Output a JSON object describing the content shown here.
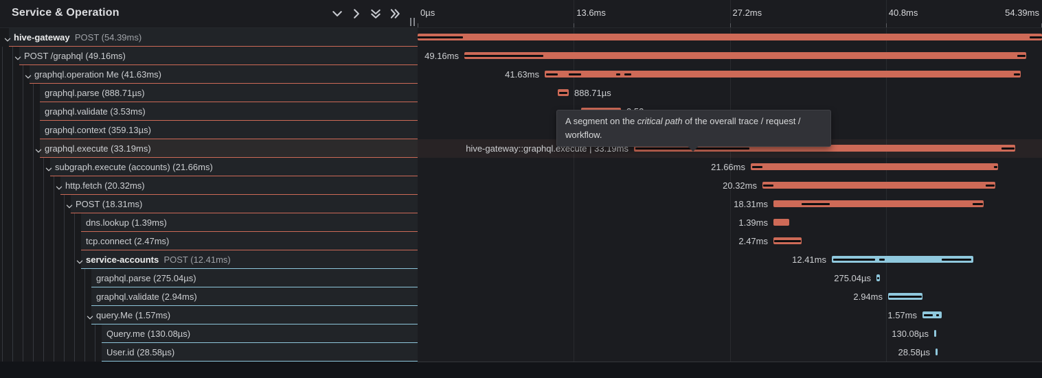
{
  "header": {
    "title": "Service & Operation",
    "controls": [
      "chevron-down",
      "chevron-right",
      "chevrons-down",
      "chevrons-right"
    ],
    "ticks": [
      {
        "label": "0µs",
        "pct": 0
      },
      {
        "label": "13.6ms",
        "pct": 25
      },
      {
        "label": "27.2ms",
        "pct": 50
      },
      {
        "label": "40.8ms",
        "pct": 75
      },
      {
        "label": "54.39ms",
        "pct": 100
      }
    ]
  },
  "colors": {
    "salmon": "#ce6a57",
    "blue": "#8fc8dd",
    "critical": "#0e0e10"
  },
  "tooltip": {
    "prefix": "A segment on the ",
    "em": "critical path",
    "middle": " of the overall trace / request /",
    "line2": "workflow."
  },
  "rows": [
    {
      "depth": 0,
      "chevron": true,
      "strong": "hive-gateway",
      "text": "POST (54.39ms)",
      "color": "salmon",
      "bar": [
        0,
        909
      ],
      "crit": [
        [
          0,
          66
        ],
        [
          891,
          909
        ]
      ],
      "tl": "",
      "side": "left"
    },
    {
      "depth": 1,
      "chevron": true,
      "strong": "",
      "text": "POST /graphql (49.16ms)",
      "color": "salmon",
      "bar": [
        68,
        886
      ],
      "crit": [
        [
          68,
          183
        ],
        [
          873,
          885
        ]
      ],
      "tl": "49.16ms",
      "side": "left"
    },
    {
      "depth": 2,
      "chevron": true,
      "strong": "",
      "text": "graphql.operation Me (41.63ms)",
      "color": "salmon",
      "bar": [
        185,
        878
      ],
      "crit": [
        [
          187,
          204
        ],
        [
          220,
          238
        ],
        [
          289,
          295
        ],
        [
          301,
          311
        ],
        [
          868,
          877
        ]
      ],
      "tl": "41.63ms",
      "side": "left"
    },
    {
      "depth": 3,
      "chevron": false,
      "strong": "",
      "text": "graphql.parse (888.71µs)",
      "color": "salmon",
      "bar": [
        204,
        220
      ],
      "crit": [
        [
          206,
          218
        ]
      ],
      "tl": "888.71µs",
      "side": "right"
    },
    {
      "depth": 3,
      "chevron": false,
      "strong": "",
      "text": "graphql.validate (3.53ms)",
      "color": "salmon",
      "bar": [
        238,
        296
      ],
      "crit": [
        [
          239,
          295
        ]
      ],
      "tl": "3.53ms",
      "side": "right"
    },
    {
      "depth": 3,
      "chevron": false,
      "strong": "",
      "text": "graphql.context (359.13µs)",
      "color": "salmon",
      "bar": [
        296,
        302
      ],
      "crit": [],
      "tl": "359.13µs",
      "side": "right"
    },
    {
      "depth": 3,
      "chevron": true,
      "strong": "",
      "text": "graphql.execute (33.19ms)",
      "hover": true,
      "color": "salmon",
      "bar": [
        315,
        870
      ],
      "crit": [
        [
          317,
          483
        ],
        [
          850,
          869
        ]
      ],
      "tl": "hive-gateway::graphql.execute | 33.19ms",
      "side": "left"
    },
    {
      "depth": 4,
      "chevron": true,
      "strong": "",
      "text": "subgraph.execute (accounts) (21.66ms)",
      "color": "salmon",
      "bar": [
        485,
        845
      ],
      "crit": [
        [
          487,
          502
        ],
        [
          839,
          844
        ]
      ],
      "tl": "21.66ms",
      "side": "left"
    },
    {
      "depth": 5,
      "chevron": true,
      "strong": "",
      "text": "http.fetch (20.32ms)",
      "color": "salmon",
      "bar": [
        502,
        841
      ],
      "crit": [
        [
          503,
          518
        ],
        [
          827,
          840
        ]
      ],
      "tl": "20.32ms",
      "side": "left"
    },
    {
      "depth": 6,
      "chevron": true,
      "strong": "",
      "text": "POST (18.31ms)",
      "color": "salmon",
      "bar": [
        518,
        824
      ],
      "crit": [
        [
          559,
          600
        ],
        [
          808,
          823
        ]
      ],
      "tl": "18.31ms",
      "side": "left"
    },
    {
      "depth": 7,
      "chevron": false,
      "strong": "",
      "text": "dns.lookup (1.39ms)",
      "color": "salmon",
      "bar": [
        518,
        541
      ],
      "crit": [],
      "tl": "1.39ms",
      "side": "left"
    },
    {
      "depth": 7,
      "chevron": false,
      "strong": "",
      "text": "tcp.connect (2.47ms)",
      "color": "salmon",
      "bar": [
        518,
        559
      ],
      "crit": [
        [
          519,
          558
        ]
      ],
      "tl": "2.47ms",
      "side": "left"
    },
    {
      "depth": 7,
      "chevron": true,
      "strong": "service-accounts",
      "text": "POST (12.41ms)",
      "color": "blue",
      "bar": [
        603,
        809
      ],
      "crit": [
        [
          605,
          666
        ],
        [
          672,
          680
        ],
        [
          763,
          806
        ]
      ],
      "tl": "12.41ms",
      "side": "left"
    },
    {
      "depth": 8,
      "chevron": false,
      "strong": "",
      "text": "graphql.parse (275.04µs)",
      "color": "blue",
      "bar": [
        668,
        673
      ],
      "crit": [
        [
          669,
          672
        ]
      ],
      "tl": "275.04µs",
      "side": "left"
    },
    {
      "depth": 8,
      "chevron": false,
      "strong": "",
      "text": "graphql.validate (2.94ms)",
      "color": "blue",
      "bar": [
        685,
        735
      ],
      "crit": [
        [
          686,
          734
        ]
      ],
      "tl": "2.94ms",
      "side": "left"
    },
    {
      "depth": 8,
      "chevron": true,
      "strong": "",
      "text": "query.Me (1.57ms)",
      "color": "blue",
      "bar": [
        735,
        763
      ],
      "crit": [
        [
          737,
          750
        ],
        [
          755,
          759
        ]
      ],
      "tl": "1.57ms",
      "side": "left"
    },
    {
      "depth": 9,
      "chevron": false,
      "strong": "",
      "text": "Query.me (130.08µs)",
      "color": "blue",
      "bar": [
        752,
        755
      ],
      "crit": [],
      "tl": "130.08µs",
      "side": "left"
    },
    {
      "depth": 9,
      "chevron": false,
      "strong": "",
      "text": "User.id (28.58µs)",
      "color": "blue",
      "bar": [
        754,
        757
      ],
      "crit": [],
      "tl": "28.58µs",
      "side": "left"
    }
  ]
}
